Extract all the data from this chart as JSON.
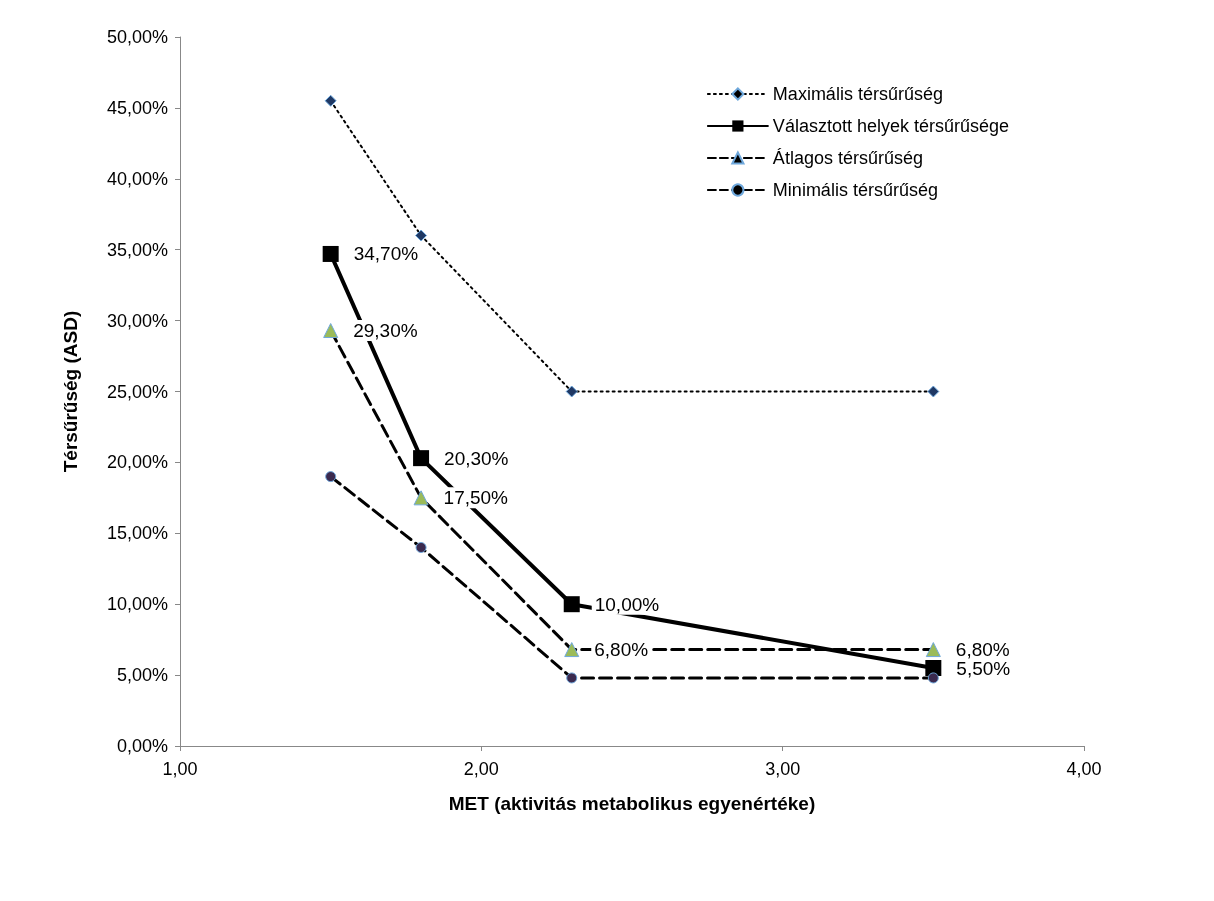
{
  "chart_data": {
    "type": "line",
    "xlabel": "MET (aktivitás metabolikus egyenértéke)",
    "ylabel": "Térsűrűség (ASD)",
    "x": [
      1.5,
      1.8,
      2.3,
      3.5
    ],
    "xlim": [
      1,
      4
    ],
    "xticks": [
      {
        "value": 1,
        "label": "1,00"
      },
      {
        "value": 2,
        "label": "2,00"
      },
      {
        "value": 3,
        "label": "3,00"
      },
      {
        "value": 4,
        "label": "4,00"
      }
    ],
    "ylim": [
      0,
      50
    ],
    "yticks": [
      {
        "value": 0,
        "label": "0,00%"
      },
      {
        "value": 5,
        "label": "5,00%"
      },
      {
        "value": 10,
        "label": "10,00%"
      },
      {
        "value": 15,
        "label": "15,00%"
      },
      {
        "value": 20,
        "label": "20,00%"
      },
      {
        "value": 25,
        "label": "25,00%"
      },
      {
        "value": 30,
        "label": "30,00%"
      },
      {
        "value": 35,
        "label": "35,00%"
      },
      {
        "value": 40,
        "label": "40,00%"
      },
      {
        "value": 45,
        "label": "45,00%"
      },
      {
        "value": 50,
        "label": "50,00%"
      }
    ],
    "grid": false,
    "legend": "top right",
    "series": [
      {
        "name": "Maximális térsűrűség",
        "color": "#000000",
        "colors": [
          "#1f3864",
          "#1f3864",
          "#1f3864",
          "#1f3864"
        ],
        "marker": "diamond",
        "line_style": "dotted",
        "values": [
          45.5,
          36,
          25,
          25
        ]
      },
      {
        "name": "Választott helyek térsűrűsége",
        "color": "#000000",
        "marker": "square",
        "line_style": "solid",
        "values": [
          34.7,
          20.3,
          10.0,
          5.5
        ],
        "value_labels": [
          "34,70%",
          "20,30%",
          "10,00%",
          "5,50%"
        ]
      },
      {
        "name": "Átlagos térsűrűség",
        "color": "#000000",
        "colors": [
          "#9bbb59",
          "#9bbb59",
          "#9bbb59",
          "#9bbb59"
        ],
        "marker": "triangle",
        "line_style": "dashed",
        "values": [
          29.3,
          17.5,
          6.8,
          6.8
        ],
        "value_labels": [
          "29,30%",
          "17,50%",
          "6,80%",
          "6,80%"
        ]
      },
      {
        "name": "Minimális térsűrűség",
        "color": "#000000",
        "colors": [
          "#3b2a4f",
          "#3b2a4f",
          "#3b2a4f",
          "#3b2a4f"
        ],
        "marker": "circle",
        "line_style": "dashed",
        "values": [
          19,
          14,
          4.8,
          4.8
        ]
      }
    ]
  }
}
